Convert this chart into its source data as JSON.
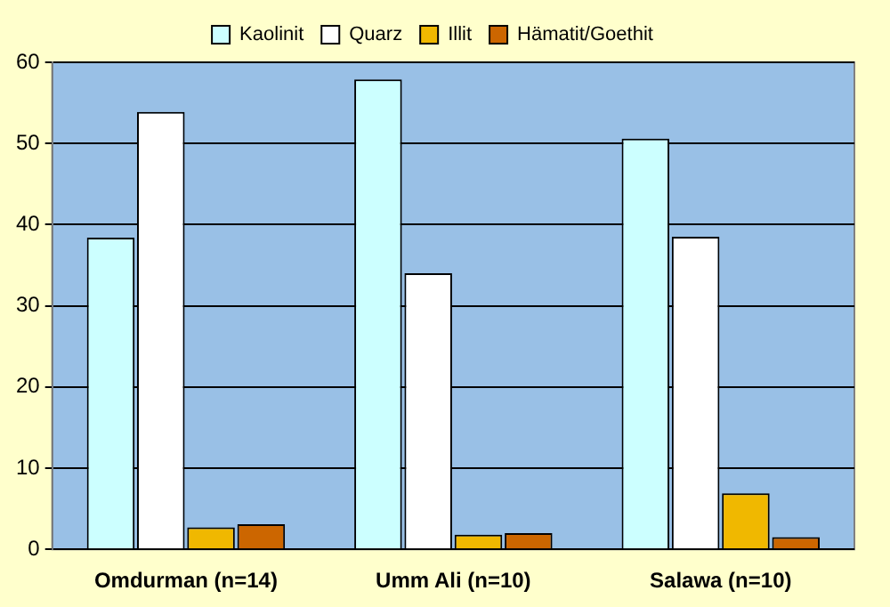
{
  "chart_data": {
    "type": "bar",
    "categories": [
      "Omdurman (n=14)",
      "Umm Ali (n=10)",
      "Salawa (n=10)"
    ],
    "series": [
      {
        "name": "Kaolinit",
        "color": "#ccffff",
        "values": [
          38.4,
          57.9,
          50.6
        ]
      },
      {
        "name": "Quarz",
        "color": "#ffffff",
        "values": [
          53.9,
          34,
          38.5
        ]
      },
      {
        "name": "Illit",
        "color": "#f0b800",
        "values": [
          2.7,
          1.8,
          6.9
        ]
      },
      {
        "name": "Hämatit/Goethit",
        "color": "#cc6600",
        "values": [
          3.1,
          2,
          1.5
        ]
      }
    ],
    "ylim": [
      0,
      60
    ],
    "yticks": [
      0,
      10,
      20,
      30,
      40,
      50,
      60
    ],
    "grid": "y",
    "legend": "top"
  }
}
